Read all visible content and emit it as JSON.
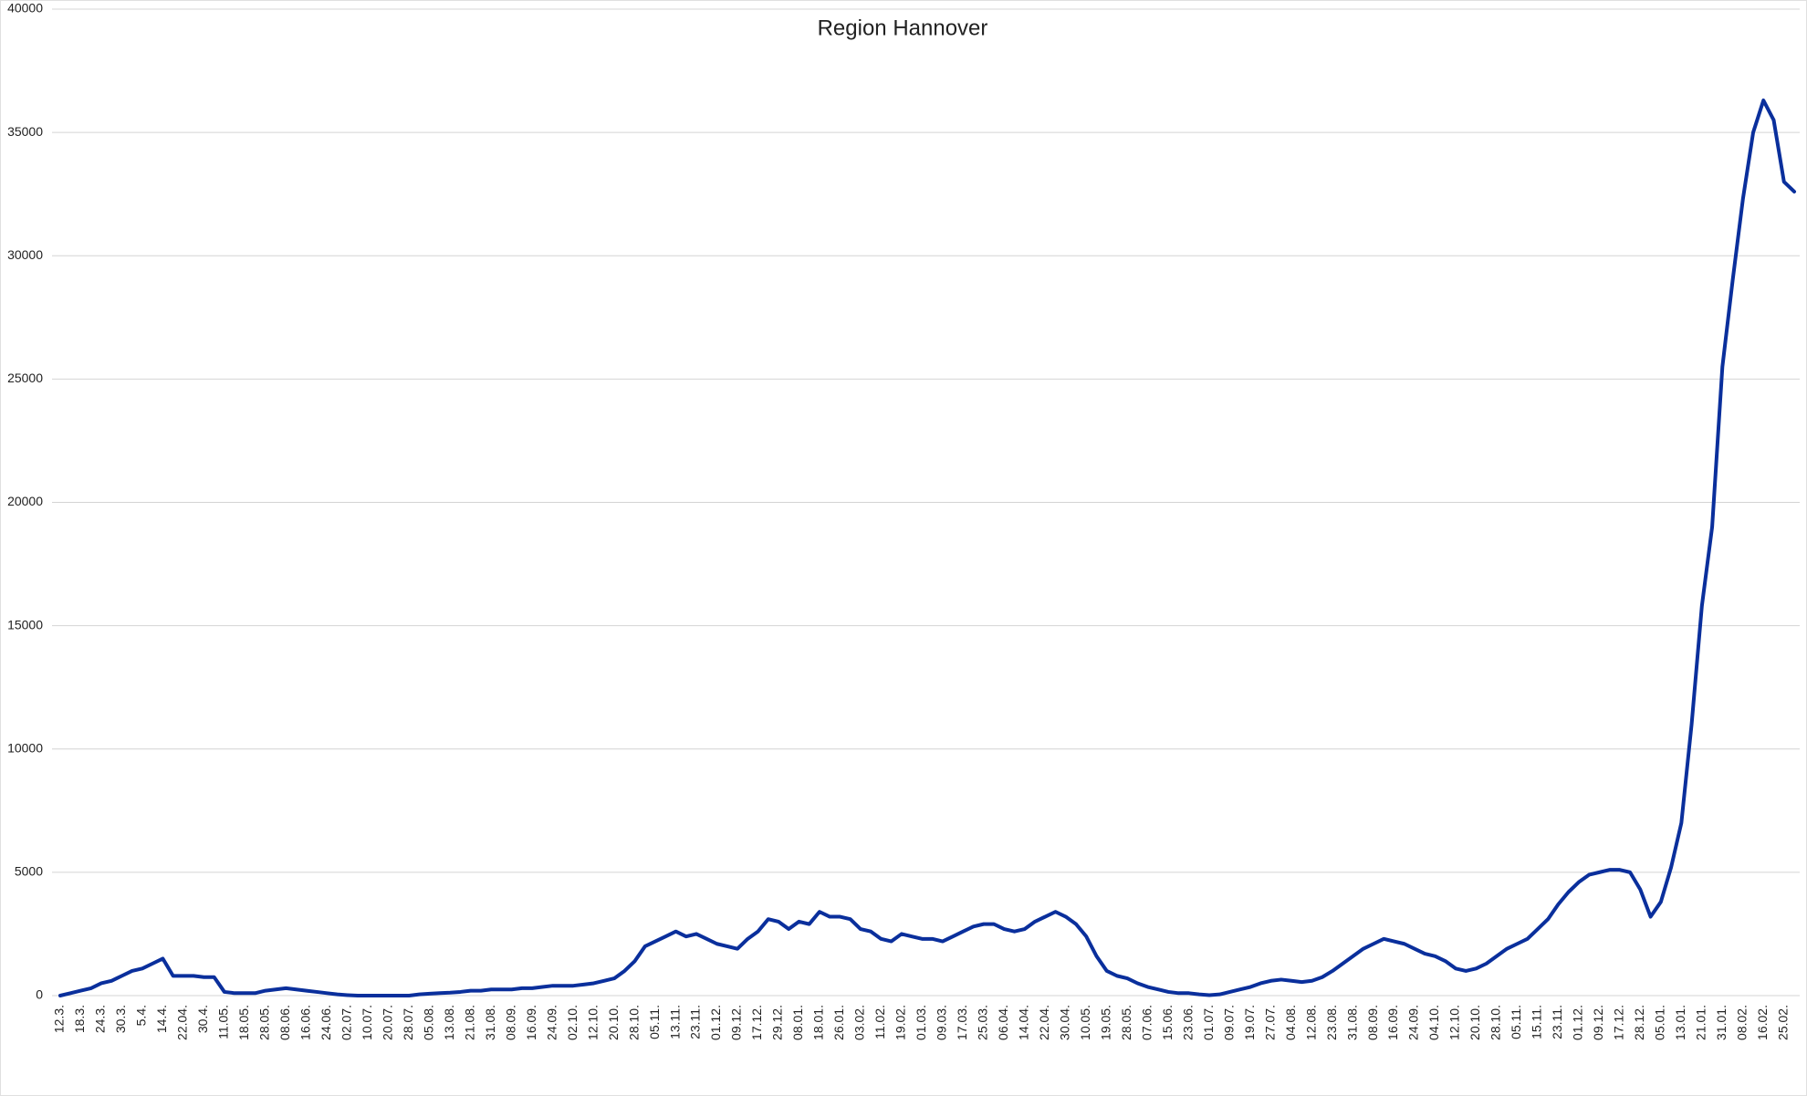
{
  "chart_data": {
    "type": "line",
    "title": "Region Hannover",
    "categories": [
      "12.3.",
      null,
      "18.3.",
      null,
      "24.3.",
      null,
      "30.3.",
      null,
      "5.4.",
      null,
      "14.4.",
      null,
      "22.04.",
      null,
      "30.4.",
      null,
      "11.05.",
      null,
      "18.05.",
      null,
      "28.05.",
      null,
      "08.06.",
      null,
      "16.06.",
      null,
      "24.06.",
      null,
      "02.07.",
      null,
      "10.07.",
      null,
      "20.07.",
      null,
      "28.07.",
      null,
      "05.08.",
      null,
      "13.08.",
      null,
      "21.08.",
      null,
      "31.08.",
      null,
      "08.09.",
      null,
      "16.09.",
      null,
      "24.09.",
      null,
      "02.10.",
      null,
      "12.10.",
      null,
      "20.10.",
      null,
      "28.10.",
      null,
      "05.11.",
      null,
      "13.11.",
      null,
      "23.11.",
      null,
      "01.12.",
      null,
      "09.12.",
      null,
      "17.12.",
      null,
      "29.12.",
      null,
      "08.01.",
      null,
      "18.01.",
      null,
      "26.01.",
      null,
      "03.02.",
      null,
      "11.02.",
      null,
      "19.02.",
      null,
      "01.03.",
      null,
      "09.03.",
      null,
      "17.03.",
      null,
      "25.03.",
      null,
      "06.04.",
      null,
      "14.04.",
      null,
      "22.04.",
      null,
      "30.04.",
      null,
      "10.05.",
      null,
      "19.05.",
      null,
      "28.05.",
      null,
      "07.06.",
      null,
      "15.06.",
      null,
      "23.06.",
      null,
      "01.07.",
      null,
      "09.07.",
      null,
      "19.07.",
      null,
      "27.07.",
      null,
      "04.08.",
      null,
      "12.08.",
      null,
      "23.08.",
      null,
      "31.08.",
      null,
      "08.09.",
      null,
      "16.09.",
      null,
      "24.09.",
      null,
      "04.10.",
      null,
      "12.10.",
      null,
      "20.10.",
      null,
      "28.10.",
      null,
      "05.11.",
      null,
      "15.11.",
      null,
      "23.11.",
      null,
      "01.12.",
      null,
      "09.12.",
      null,
      "17.12.",
      null,
      "28.12.",
      null,
      "05.01.",
      null,
      "13.01.",
      null,
      "21.01.",
      null,
      "31.01.",
      null,
      "08.02.",
      null,
      "16.02.",
      null,
      "25.02.",
      null
    ],
    "values": [
      0,
      100,
      200,
      300,
      500,
      600,
      800,
      1000,
      1100,
      1300,
      1500,
      800,
      800,
      800,
      750,
      750,
      150,
      100,
      100,
      100,
      200,
      250,
      300,
      250,
      200,
      150,
      100,
      50,
      20,
      0,
      0,
      0,
      0,
      0,
      0,
      50,
      80,
      100,
      120,
      150,
      200,
      200,
      250,
      250,
      250,
      300,
      300,
      350,
      400,
      400,
      400,
      450,
      500,
      600,
      700,
      1000,
      1400,
      2000,
      2200,
      2400,
      2600,
      2400,
      2500,
      2300,
      2100,
      2000,
      1900,
      2300,
      2600,
      3100,
      3000,
      2700,
      3000,
      2900,
      3400,
      3200,
      3200,
      3100,
      2700,
      2600,
      2300,
      2200,
      2500,
      2400,
      2300,
      2300,
      2200,
      2400,
      2600,
      2800,
      2900,
      2900,
      2700,
      2600,
      2700,
      3000,
      3200,
      3400,
      3200,
      2900,
      2400,
      1600,
      1000,
      800,
      700,
      500,
      350,
      250,
      150,
      100,
      100,
      50,
      20,
      50,
      150,
      250,
      350,
      500,
      600,
      650,
      600,
      550,
      600,
      750,
      1000,
      1300,
      1600,
      1900,
      2100,
      2300,
      2200,
      2100,
      1900,
      1700,
      1600,
      1400,
      1100,
      1000,
      1100,
      1300,
      1600,
      1900,
      2100,
      2300,
      2700,
      3100,
      3700,
      4200,
      4600,
      4900,
      5000,
      5100,
      5100,
      5000,
      4300,
      3200,
      3800,
      5200,
      7000,
      11000,
      15800,
      19000,
      25500,
      29000,
      32300,
      35000,
      36300,
      35500,
      33000,
      32600
    ],
    "color": "#0a2f9c",
    "ylim": [
      0,
      40000
    ],
    "yticks": [
      0,
      5000,
      10000,
      15000,
      20000,
      25000,
      30000,
      35000,
      40000
    ],
    "grid": true
  }
}
